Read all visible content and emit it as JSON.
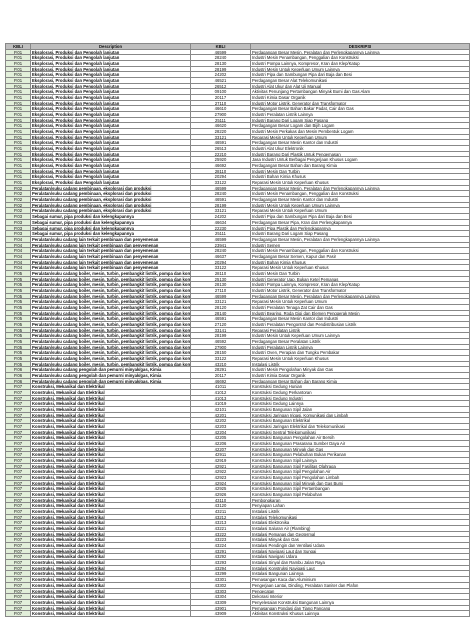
{
  "table": {
    "header": [
      "KBLI",
      "Description",
      "KBLI",
      "DESKRIPSI"
    ],
    "groups": [
      {
        "code": "P.01",
        "description": "Eksplorasi, Produksi dan Pengolah lanjutan",
        "items": [
          [
            "46599",
            "Perdagangan Besar Mesin, Peralatan dan Perlengkapannya Lainnya"
          ],
          [
            "28240",
            "Industri Mesin Penambangan, Penggalian dan Konstruksi"
          ],
          [
            "28130",
            "Industri Pompa Lainnya, Kompresor, Kran dan Klep/Katup"
          ],
          [
            "28199",
            "Industri Mesin Untuk Keperluan Umum Lainnya"
          ],
          [
            "24202",
            "Industri Pipa dan Sambungan Pipa dari Baja dan Besi"
          ],
          [
            "46521",
            "Perdagangan Besar Alat Telekomunikasi"
          ],
          [
            "26512",
            "Industri Alat Ukur dan Alat Uji Manual"
          ],
          [
            "09100",
            "Aktivitas Penunjang Pertambangan Minyak Bumi dan Gas Alam"
          ],
          [
            "20117",
            "Industri Kimia Dasar Organik"
          ],
          [
            "27110",
            "Industri Motor Listrik, Generator dan Transformator"
          ],
          [
            "46610",
            "Perdagangan Besar Bahan Bakar Padat, Cair dan Gas"
          ],
          [
            "27900",
            "Industri Peralatan Listrik Lainnya"
          ],
          [
            "25111",
            "Industri Barang Dari Logam Siap Pasang"
          ],
          [
            "46620",
            "Perdagangan Besar Logam dan Bijih Logam"
          ],
          [
            "28220",
            "Industri Mesin Perkakas dan Mesin Pembentuk Logam"
          ],
          [
            "33121",
            "Reparasi Mesin Untuk Keperluan Umum"
          ],
          [
            "46591",
            "Perdagangan Besar Mesin Kantor dan Industri"
          ],
          [
            "26513",
            "Industri Alat Ukur Elektronik"
          ],
          [
            "22210",
            "Industri Barang Dari Plastik Untuk Pengemasan"
          ],
          [
            "25920",
            "Jasa Industri Untuk Berbagai Pengerjaan Khusus Logam"
          ],
          [
            "46692",
            "Perdagangan Besar Bahan dan Barang Kimia"
          ],
          [
            "28110",
            "Industri Mesin Dan Turbin"
          ],
          [
            "20294",
            "Industri Bahan Kimia Khusus"
          ],
          [
            "33122",
            "Reparasi Mesin Untuk Keperluan Khusus"
          ]
        ]
      },
      {
        "code": "P.02",
        "description": "Peralatan/suku cadang pembinaan, eksplorasi dan produksi",
        "items": [
          [
            "46599",
            "Perdagangan Besar Mesin, Peralatan dan Perlengkapannya Lainnya"
          ],
          [
            "28240",
            "Industri Mesin Penambangan, Penggalian dan Konstruksi"
          ],
          [
            "46591",
            "Perdagangan Besar Mesin Kantor dan Industri"
          ],
          [
            "28199",
            "Industri Mesin Untuk Keperluan Umum Lainnya"
          ],
          [
            "33121",
            "Reparasi Mesin Untuk Keperluan Umum"
          ]
        ]
      },
      {
        "code": "P.03",
        "description": "Sebagai sumur, pipa produksi dan kelengkapannya",
        "items": [
          [
            "24202",
            "Industri Pipa dan Sambungan Pipa dari Baja dan Besi"
          ],
          [
            "46634",
            "Perdagangan Besar Pipa, Kran dan Perlengkapannya"
          ],
          [
            "22230",
            "Industri Pipa Plastik dan Perlengkapannya"
          ],
          [
            "25111",
            "Industri Barang Dari Logam Siap Pasang"
          ]
        ]
      },
      {
        "code": "P.04",
        "description": "Peralatan/suku cadang lain terkait pembinaan dan penyemenan",
        "items": [
          [
            "46599",
            "Perdagangan Besar Mesin, Peralatan dan Perlengkapannya Lainnya"
          ],
          [
            "23941",
            "Industri Semen"
          ],
          [
            "28240",
            "Industri Mesin Penambangan, Penggalian dan Konstruksi"
          ],
          [
            "46637",
            "Perdagangan Besar Semen, Kapur dan Pasir"
          ],
          [
            "20294",
            "Industri Bahan Kimia Khusus"
          ],
          [
            "33122",
            "Reparasi Mesin Untuk Keperluan Khusus"
          ]
        ]
      },
      {
        "code": "P.05",
        "description": "Peralatan/suku cadang boiler, mesin, turbin, pembangkit listrik, pompa dan kompresor",
        "items": [
          [
            "28110",
            "Industri Mesin Dan Turbin"
          ],
          [
            "25130",
            "Industri Generator Uap, Bukan Ketel Pemanas"
          ],
          [
            "28130",
            "Industri Pompa Lainnya, Kompresor, Kran dan Klep/Katup"
          ],
          [
            "27110",
            "Industri Motor Listrik, Generator dan Transformator"
          ],
          [
            "46599",
            "Perdagangan Besar Mesin, Peralatan dan Perlengkapannya Lainnya"
          ],
          [
            "33121",
            "Reparasi Mesin Untuk Keperluan Umum"
          ],
          [
            "28120",
            "Industri Peralatan Tenaga Zat Cair dan Gas"
          ],
          [
            "28140",
            "Industri Bearing, Roda Gigi dan Elemen Penggerak Mesin"
          ],
          [
            "46591",
            "Perdagangan Besar Mesin Kantor dan Industri"
          ],
          [
            "27120",
            "Industri Peralatan Pengontrol dan Pendistribusian Listrik"
          ],
          [
            "33141",
            "Reparasi Peralatan Listrik"
          ],
          [
            "28199",
            "Industri Mesin Untuk Keperluan Umum Lainnya"
          ],
          [
            "46592",
            "Perdagangan Besar Peralatan Listrik"
          ],
          [
            "27900",
            "Industri Peralatan Listrik Lainnya"
          ],
          [
            "28150",
            "Industri Oven, Perapian dan Tungku Pembakar"
          ],
          [
            "33122",
            "Reparasi Mesin Untuk Keperluan Khusus"
          ],
          [
            "43210",
            "Instalasi Listrik"
          ]
        ]
      },
      {
        "code": "P.06",
        "description": "Peralatan/suku cadang pengolah dan pemurni minyak/gas, Kimia",
        "items": [
          [
            "28291",
            "Industri Mesin Pengolahan Minyak dan Gas"
          ],
          [
            "20117",
            "Industri Kimia Dasar Organik"
          ],
          [
            "46692",
            "Perdagangan Besar Bahan dan Barang Kimia"
          ]
        ]
      },
      {
        "code": "P.07",
        "description": "Konstruksi, Mekanikal dan Elektrikal",
        "items": [
          [
            "41011",
            "Konstruksi Gedung Hunian"
          ],
          [
            "41012",
            "Konstruksi Gedung Perkantoran"
          ],
          [
            "41013",
            "Konstruksi Gedung Industri"
          ],
          [
            "41019",
            "Konstruksi Gedung Lainnya"
          ],
          [
            "42101",
            "Konstruksi Bangunan Sipil Jalan"
          ],
          [
            "42201",
            "Konstruksi Jaringan Irigasi, Komunikasi dan Limbah"
          ],
          [
            "42202",
            "Konstruksi Bangunan Elektrikal"
          ],
          [
            "42203",
            "Konstruksi Jaringan Elektrikal dan Telekomunikasi"
          ],
          [
            "42204",
            "Konstruksi Sentral Telekomunikasi"
          ],
          [
            "42205",
            "Konstruksi Bangunan Pengolahan Air Bersih"
          ],
          [
            "42206",
            "Konstruksi Bangunan Prasarana Sumber Daya Air"
          ],
          [
            "42207",
            "Konstruksi Bangunan Minyak dan Gas"
          ],
          [
            "42911",
            "Konstruksi Bangunan Pelabuhan Bukan Perikanan"
          ],
          [
            "42919",
            "Konstruksi Bangunan Sipil Lainnya"
          ],
          [
            "42921",
            "Konstruksi Bangunan Sipil Fasilitas Olahraga"
          ],
          [
            "42922",
            "Konstruksi Bangunan Sipil Pengolahan Air"
          ],
          [
            "42923",
            "Konstruksi Bangunan Sipil Pengolahan Limbah"
          ],
          [
            "42924",
            "Konstruksi Bangunan Sipil Minyak dan Gas Bumi"
          ],
          [
            "42925",
            "Konstruksi Bangunan Sipil Pertambangan"
          ],
          [
            "42926",
            "Konstruksi Bangunan Sipil Pelabuhan"
          ],
          [
            "43110",
            "Pembongkaran"
          ],
          [
            "43120",
            "Penyiapan Lahan"
          ],
          [
            "43211",
            "Instalasi Listrik"
          ],
          [
            "43212",
            "Instalasi Telekomunikasi"
          ],
          [
            "43213",
            "Instalasi Elektronika"
          ],
          [
            "43221",
            "Instalasi Saluran Air (Plambing)"
          ],
          [
            "43222",
            "Instalasi Pemanas dan Geotermal"
          ],
          [
            "43223",
            "Instalasi Minyak dan Gas"
          ],
          [
            "43224",
            "Instalasi Pendingin dan Ventilasi Udara"
          ],
          [
            "43291",
            "Instalasi Navigasi Laut dan Sungai"
          ],
          [
            "43292",
            "Instalasi Navigasi Udara"
          ],
          [
            "43293",
            "Instalasi Sinyal dan Rambu Jalan Raya"
          ],
          [
            "43294",
            "Instalasi Konstruksi Navigasi Laut"
          ],
          [
            "43299",
            "Instalasi Bangunan Lainnya"
          ],
          [
            "43301",
            "Pemasangan Kaca dan Aluminium"
          ],
          [
            "43302",
            "Pengerjaan Lantai, Dinding, Peralatan Saniter dan Plafon"
          ],
          [
            "43303",
            "Pengecatan"
          ],
          [
            "43304",
            "Dekorasi Interior"
          ],
          [
            "43309",
            "Penyelesaian Konstruksi Bangunan Lainnya"
          ],
          [
            "43901",
            "Pemasangan Pondasi dan Tiang Pancang"
          ],
          [
            "43909",
            "Aktivitas Konstruksi Khusus Lainnya"
          ]
        ]
      }
    ]
  }
}
